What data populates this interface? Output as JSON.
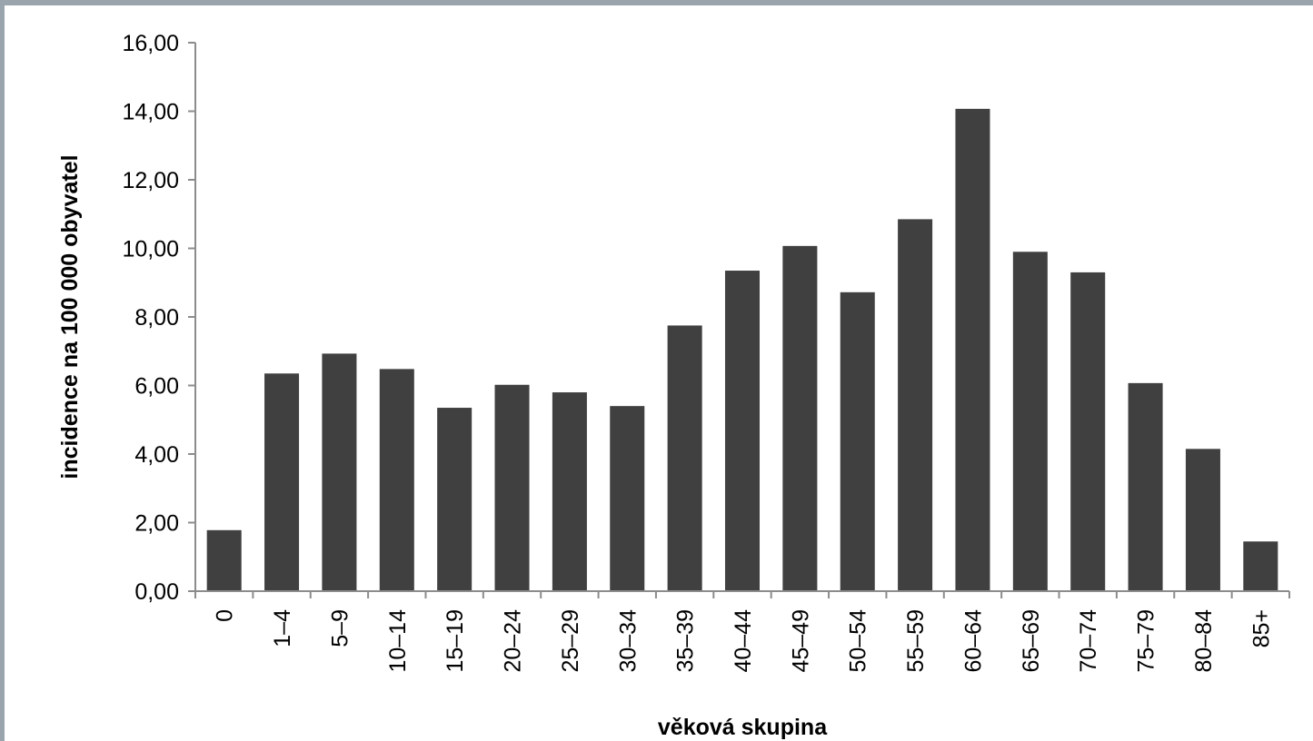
{
  "chart_data": {
    "type": "bar",
    "categories": [
      "0",
      "1–4",
      "5–9",
      "10–14",
      "15–19",
      "20–24",
      "25–29",
      "30–34",
      "35–39",
      "40–44",
      "45–49",
      "50–54",
      "55–59",
      "60–64",
      "65–69",
      "70–74",
      "75–79",
      "80–84",
      "85+"
    ],
    "values": [
      1.78,
      6.35,
      6.93,
      6.48,
      5.35,
      6.02,
      5.8,
      5.4,
      7.75,
      9.35,
      10.07,
      8.72,
      10.85,
      14.07,
      9.9,
      9.3,
      6.07,
      4.15,
      1.45
    ],
    "xlabel": "věková skupina",
    "ylabel": "incidence na 100 000 obyvatel",
    "ylim": [
      0,
      16
    ],
    "yticks": [
      "0,00",
      "2,00",
      "4,00",
      "6,00",
      "8,00",
      "10,00",
      "12,00",
      "14,00",
      "16,00"
    ],
    "grid": false,
    "legend": "none",
    "bar_color": "#404040"
  }
}
